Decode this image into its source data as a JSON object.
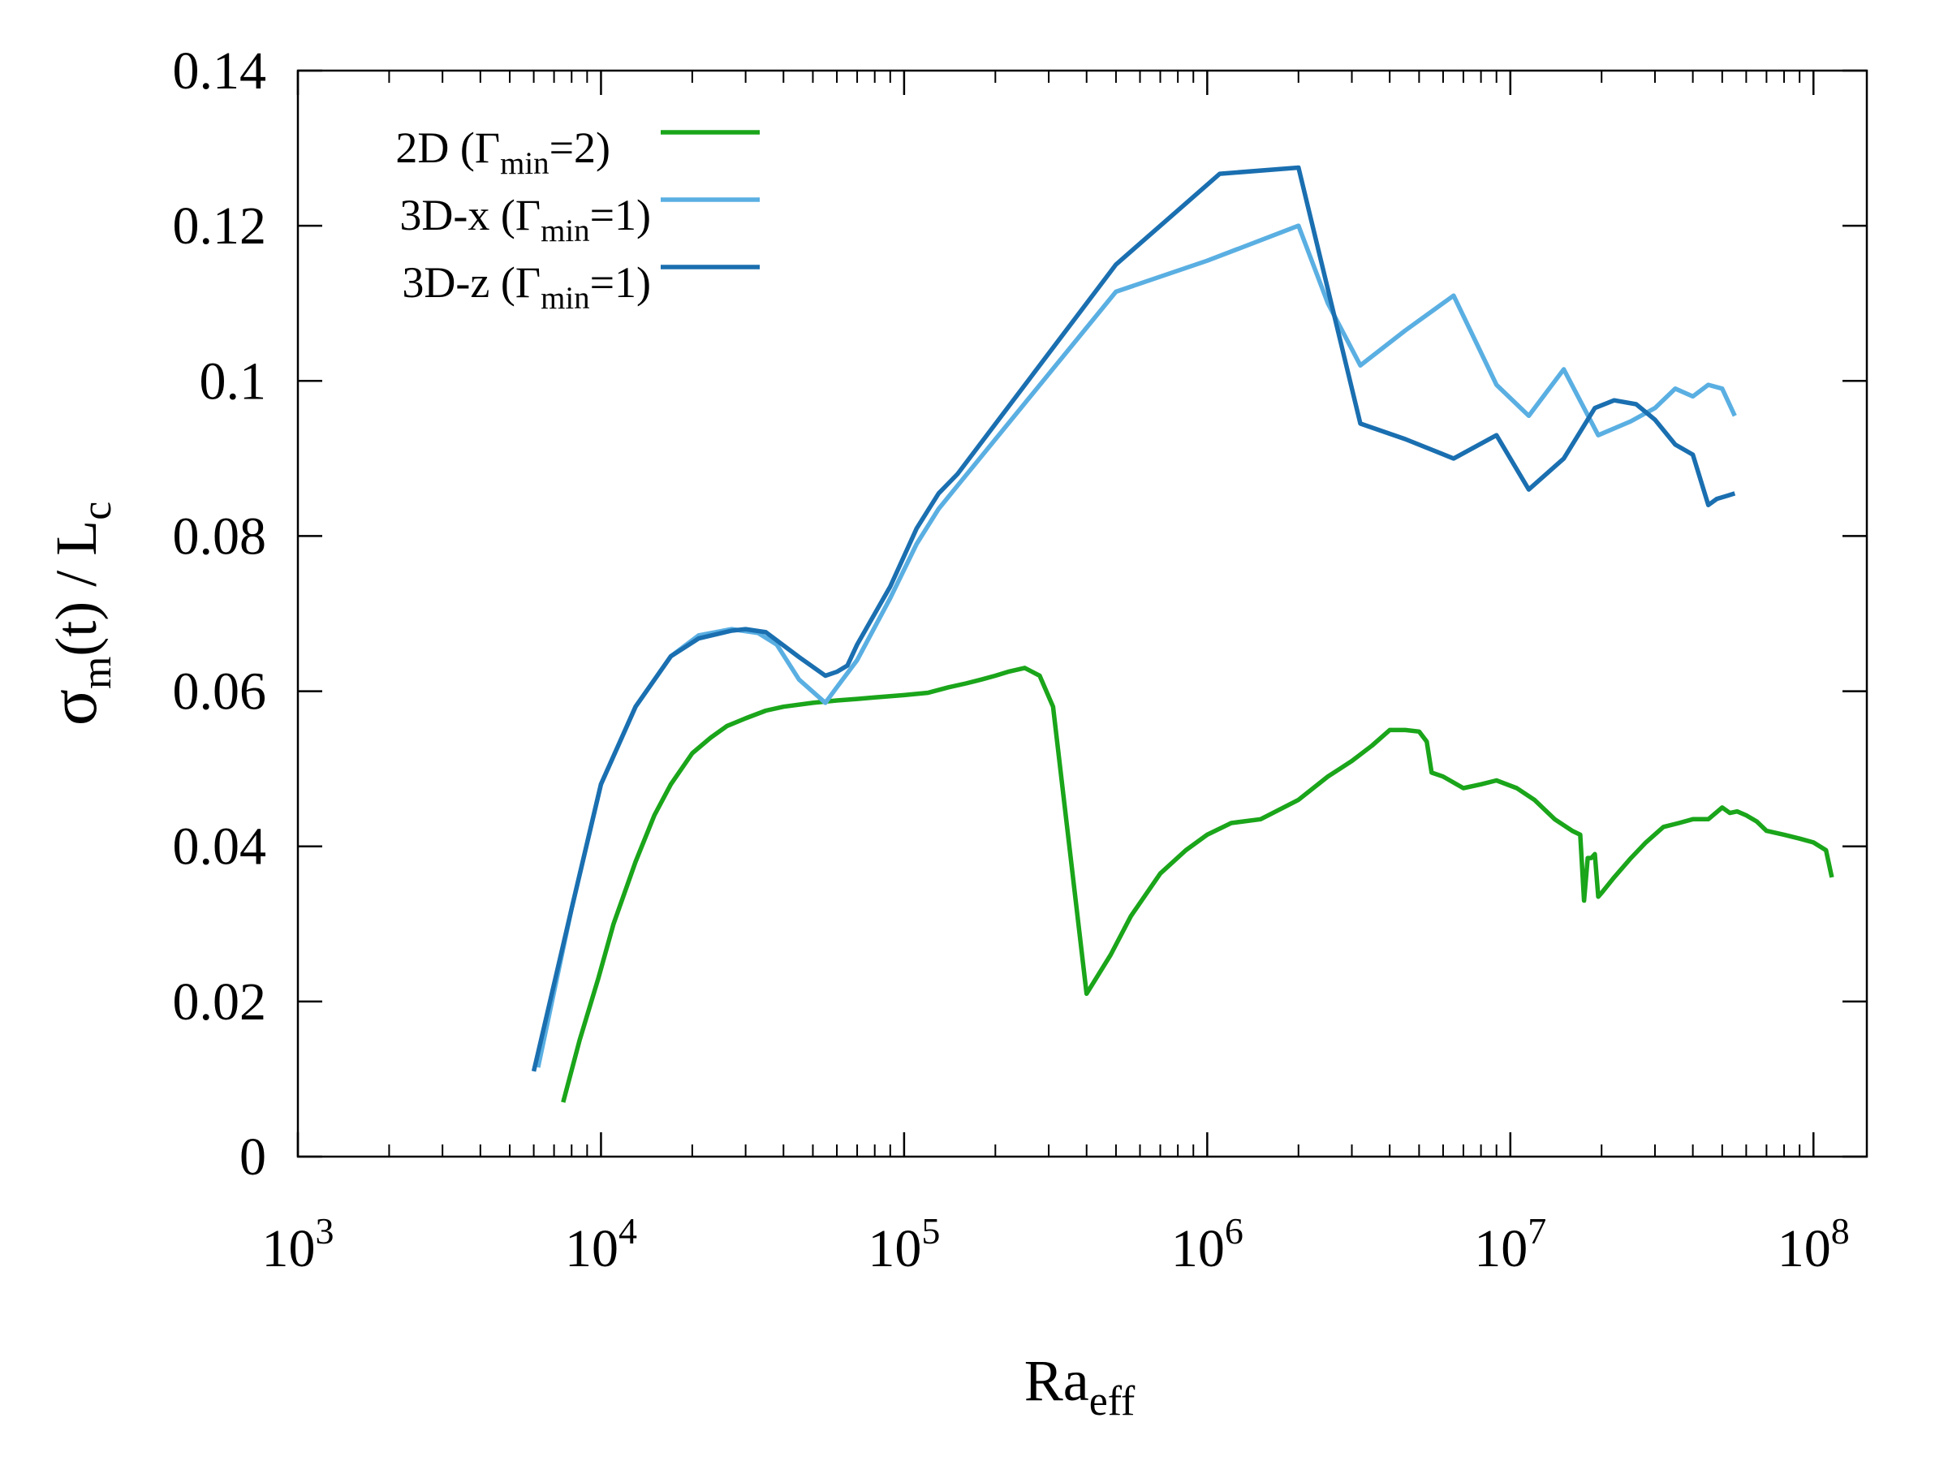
{
  "chart_data": {
    "type": "line",
    "xlabel": {
      "main": "Ra",
      "sub": "eff"
    },
    "ylabel": {
      "sigma": "σ",
      "sigma_sub": "m",
      "mid": "(t) / L",
      "end_sub": "c"
    },
    "x_scale": "log",
    "xlim": [
      1000,
      150000000
    ],
    "ylim": [
      0,
      0.14
    ],
    "x_ticks": [
      {
        "base": "10",
        "exp": "3",
        "value": 1000
      },
      {
        "base": "10",
        "exp": "4",
        "value": 10000
      },
      {
        "base": "10",
        "exp": "5",
        "value": 100000
      },
      {
        "base": "10",
        "exp": "6",
        "value": 1000000
      },
      {
        "base": "10",
        "exp": "7",
        "value": 10000000
      },
      {
        "base": "10",
        "exp": "8",
        "value": 100000000
      }
    ],
    "y_ticks": [
      "0",
      "0.02",
      "0.04",
      "0.06",
      "0.08",
      "0.1",
      "0.12",
      "0.14"
    ],
    "grid": false,
    "legend_position": "top-left",
    "series": [
      {
        "legend": {
          "pre": "2D (Γ",
          "sub": "min",
          "post": "=2)"
        },
        "color": "#1aa51a",
        "x": [
          7500,
          8500,
          9800,
          11000,
          13000,
          15000,
          17000,
          20000,
          23000,
          26000,
          30000,
          35000,
          40000,
          50000,
          60000,
          70000,
          80000,
          100000,
          120000,
          140000,
          160000,
          180000,
          200000,
          220000,
          250000,
          280000,
          310000,
          400000,
          480000,
          560000,
          700000,
          850000,
          1000000,
          1200000,
          1500000,
          2000000,
          2500000,
          3000000,
          3500000,
          4000000,
          4500000,
          5000000,
          5300000,
          5500000,
          6000000,
          7000000,
          8000000,
          9000000,
          10500000,
          12000000,
          14000000,
          16000000,
          17000000,
          17500000,
          18000000,
          18500000,
          19000000,
          19500000,
          20000000,
          22000000,
          25000000,
          28000000,
          32000000,
          36000000,
          40000000,
          45000000,
          50000000,
          53000000,
          56000000,
          60000000,
          65000000,
          70000000,
          80000000,
          90000000,
          100000000,
          110000000,
          115000000
        ],
        "y": [
          0.007,
          0.015,
          0.023,
          0.03,
          0.038,
          0.044,
          0.048,
          0.052,
          0.054,
          0.0555,
          0.0565,
          0.0575,
          0.058,
          0.0585,
          0.0588,
          0.059,
          0.0592,
          0.0595,
          0.0598,
          0.0605,
          0.061,
          0.0615,
          0.062,
          0.0625,
          0.063,
          0.062,
          0.058,
          0.021,
          0.026,
          0.031,
          0.0365,
          0.0395,
          0.0415,
          0.043,
          0.0435,
          0.046,
          0.049,
          0.051,
          0.053,
          0.055,
          0.055,
          0.0548,
          0.0535,
          0.0495,
          0.049,
          0.0475,
          0.048,
          0.0485,
          0.0475,
          0.046,
          0.0435,
          0.042,
          0.0415,
          0.033,
          0.0385,
          0.0385,
          0.039,
          0.0335,
          0.034,
          0.036,
          0.0385,
          0.0405,
          0.0425,
          0.043,
          0.0435,
          0.0435,
          0.045,
          0.0443,
          0.0445,
          0.044,
          0.0432,
          0.042,
          0.0415,
          0.041,
          0.0405,
          0.0395,
          0.036
        ]
      },
      {
        "legend": {
          "pre": "3D-x (Γ",
          "sub": "min",
          "post": "=1)"
        },
        "color": "#5aafe2",
        "x": [
          6200,
          8000,
          10000,
          13000,
          17000,
          21000,
          27000,
          33000,
          38000,
          45000,
          55000,
          60000,
          70000,
          90000,
          110000,
          130000,
          150000,
          500000,
          1000000,
          2000000,
          2500000,
          3200000,
          4500000,
          6500000,
          9000000,
          11500000,
          15000000,
          19500000,
          25000000,
          30000000,
          35000000,
          40000000,
          45000000,
          50000000,
          55000000
        ],
        "y": [
          0.0115,
          0.032,
          0.048,
          0.058,
          0.0645,
          0.0672,
          0.068,
          0.0675,
          0.066,
          0.0615,
          0.0585,
          0.0605,
          0.064,
          0.072,
          0.079,
          0.0835,
          0.0865,
          0.1115,
          0.1155,
          0.12,
          0.11,
          0.102,
          0.1065,
          0.111,
          0.0995,
          0.0955,
          0.1015,
          0.093,
          0.0948,
          0.0965,
          0.099,
          0.098,
          0.0995,
          0.099,
          0.0955
        ]
      },
      {
        "legend": {
          "pre": "3D-z (Γ",
          "sub": "min",
          "post": "=1)"
        },
        "color": "#1a6fb0",
        "x": [
          6000,
          8000,
          10000,
          13000,
          17000,
          21000,
          27000,
          30000,
          35000,
          45000,
          55000,
          60000,
          65000,
          70000,
          90000,
          110000,
          130000,
          150000,
          500000,
          1100000,
          2000000,
          3200000,
          4500000,
          6500000,
          9000000,
          11500000,
          15000000,
          19000000,
          22000000,
          26000000,
          30000000,
          35000000,
          40000000,
          45000000,
          48000000,
          52000000,
          55000000
        ],
        "y": [
          0.011,
          0.032,
          0.048,
          0.058,
          0.0645,
          0.0668,
          0.0678,
          0.068,
          0.0676,
          0.0644,
          0.062,
          0.0625,
          0.0633,
          0.066,
          0.0735,
          0.081,
          0.0855,
          0.088,
          0.115,
          0.1267,
          0.1275,
          0.0945,
          0.0925,
          0.09,
          0.093,
          0.086,
          0.09,
          0.0965,
          0.0975,
          0.097,
          0.095,
          0.0918,
          0.0905,
          0.084,
          0.0848,
          0.0852,
          0.0855
        ]
      }
    ]
  }
}
